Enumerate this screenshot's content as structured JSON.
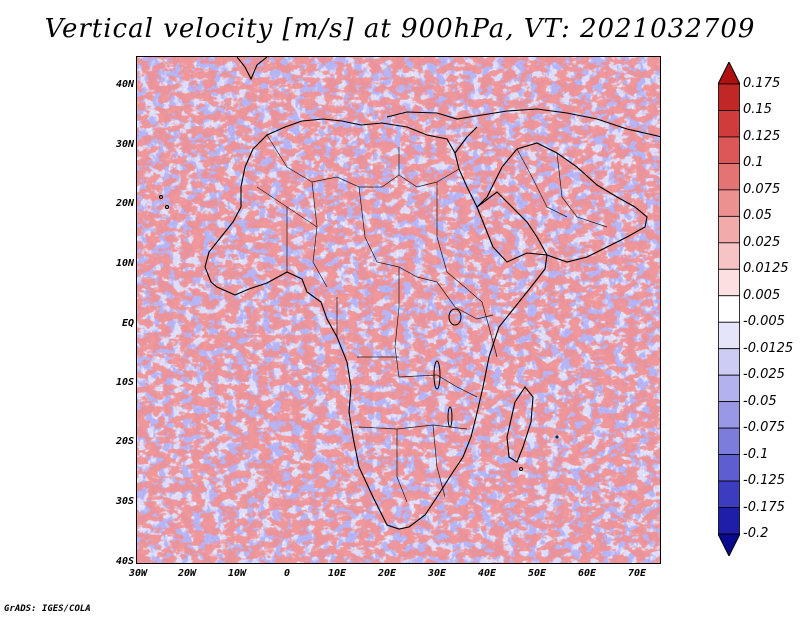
{
  "title": "Vertical velocity [m/s] at 900hPa, VT: 2021032709",
  "map": {
    "variable": "Vertical velocity",
    "units": "m/s",
    "level": "900hPa",
    "valid_time": "2021032709",
    "lat_labels": [
      "40N",
      "30N",
      "20N",
      "10N",
      "EQ",
      "10S",
      "20S",
      "30S",
      "40S"
    ],
    "lon_labels": [
      "30W",
      "20W",
      "10W",
      "0",
      "10E",
      "20E",
      "30E",
      "40E",
      "50E",
      "60E",
      "70E"
    ],
    "lat_range": [
      -40,
      45
    ],
    "lon_range": [
      -30,
      75
    ]
  },
  "colorbar": {
    "levels": [
      "0.175",
      "0.15",
      "0.125",
      "0.1",
      "0.075",
      "0.05",
      "0.025",
      "0.0125",
      "0.005",
      "-0.005",
      "-0.0125",
      "-0.025",
      "-0.05",
      "-0.075",
      "-0.1",
      "-0.125",
      "-0.175",
      "-0.2"
    ],
    "colors": [
      "#b01010",
      "#c02828",
      "#d03c3c",
      "#dc5858",
      "#e47474",
      "#ec9090",
      "#f2aaaa",
      "#f6c4c4",
      "#fae0e0",
      "#ffffff",
      "#e4e4fa",
      "#ccccf4",
      "#b2b2ee",
      "#9898e6",
      "#7c7cdc",
      "#5e5ed0",
      "#3c3cc0",
      "#1e1ea8",
      "#0a0a90"
    ]
  },
  "credit": "GrADS: IGES/COLA"
}
